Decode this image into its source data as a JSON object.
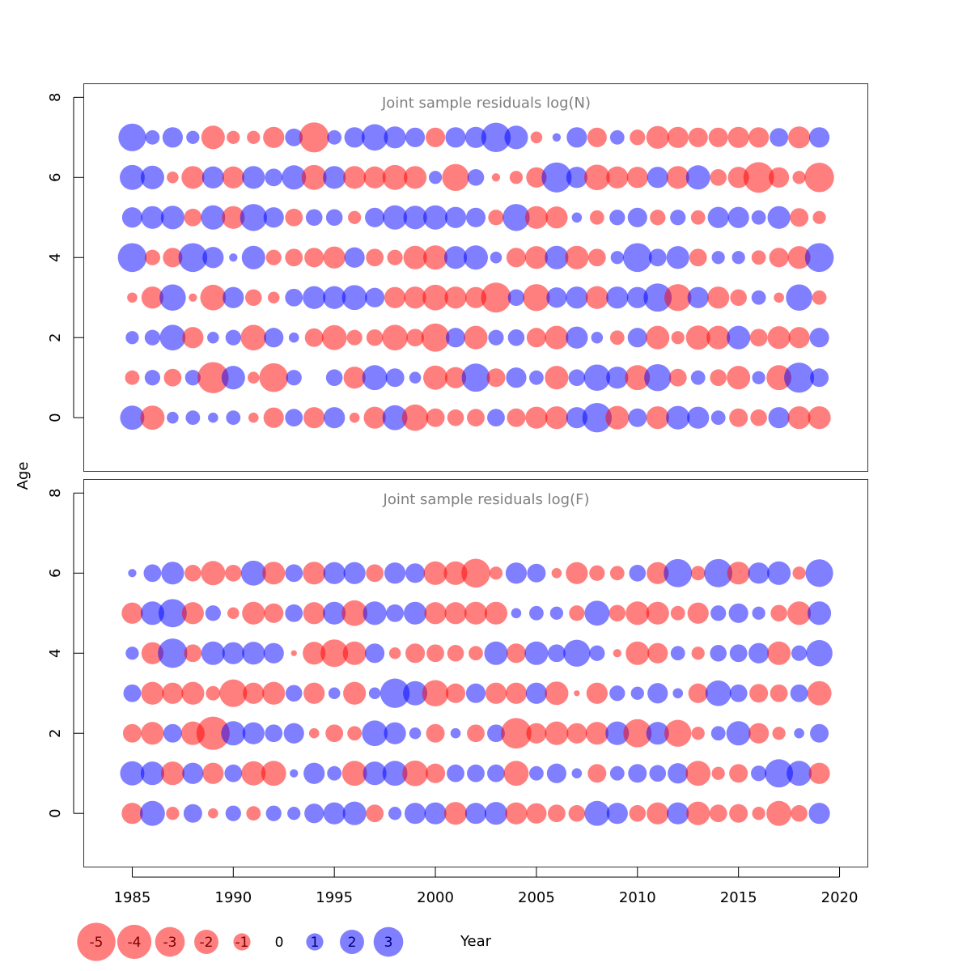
{
  "chart_data": [
    {
      "type": "scatter",
      "title": "Joint sample residuals log(N)",
      "xlabel": "Year",
      "ylabel": "Age",
      "xlim": [
        1982.6,
        2021.4
      ],
      "ylim": [
        -1.34,
        8.34
      ],
      "x_ticks": [
        1985,
        1990,
        1995,
        2000,
        2005,
        2010,
        2015,
        2020
      ],
      "y_ticks": [
        0,
        2,
        4,
        6,
        8
      ],
      "years": [
        1985,
        1986,
        1987,
        1988,
        1989,
        1990,
        1991,
        1992,
        1993,
        1994,
        1995,
        1996,
        1997,
        1998,
        1999,
        2000,
        2001,
        2002,
        2003,
        2004,
        2005,
        2006,
        2007,
        2008,
        2009,
        2010,
        2011,
        2012,
        2013,
        2014,
        2015,
        2016,
        2017,
        2018,
        2019
      ],
      "series": [
        {
          "age": 7,
          "residuals": [
            2.2,
            0.6,
            1.2,
            0.5,
            -1.6,
            -0.5,
            -0.5,
            -1.3,
            0.9,
            -2.6,
            0.6,
            1.2,
            2.0,
            1.4,
            1.1,
            -1.1,
            1.2,
            1.3,
            2.5,
            1.6,
            -0.4,
            0.2,
            1.2,
            -1.1,
            0.6,
            -0.7,
            -1.5,
            -1.3,
            -1.1,
            -1.1,
            -1.3,
            -1.2,
            1.0,
            -1.4,
            1.2
          ]
        },
        {
          "age": 6,
          "residuals": [
            1.8,
            1.6,
            -0.4,
            -1.5,
            1.4,
            -1.4,
            1.5,
            0.9,
            1.7,
            -1.8,
            1.5,
            -1.5,
            -1.4,
            -1.8,
            -1.5,
            0.5,
            -2.1,
            0.8,
            -0.2,
            -0.5,
            -1.2,
            2.6,
            1.3,
            -1.9,
            -1.4,
            -1.3,
            1.3,
            -1.5,
            1.7,
            -0.8,
            -1.3,
            -2.7,
            -1.2,
            -0.5,
            -2.5
          ]
        },
        {
          "age": 5,
          "residuals": [
            1.2,
            1.5,
            1.6,
            -0.9,
            1.7,
            -1.5,
            2.1,
            1.2,
            -0.9,
            0.8,
            0.8,
            -0.5,
            1.1,
            1.7,
            1.6,
            1.7,
            1.3,
            1.1,
            -0.7,
            2.1,
            -1.5,
            -1.4,
            0.3,
            -0.6,
            0.7,
            1.1,
            -0.7,
            0.7,
            -0.6,
            1.3,
            1.3,
            0.6,
            1.5,
            -1.0,
            -0.5
          ]
        },
        {
          "age": 4,
          "residuals": [
            2.4,
            -0.7,
            -1.1,
            2.4,
            1.3,
            0.2,
            1.6,
            -0.7,
            -0.9,
            -1.1,
            -1.4,
            1.2,
            -0.9,
            -0.7,
            -1.6,
            -1.7,
            1.5,
            1.7,
            0.4,
            -1.1,
            -1.5,
            1.6,
            -1.6,
            -0.9,
            0.5,
            2.4,
            0.9,
            1.5,
            -0.9,
            0.5,
            0.5,
            -0.6,
            -1.1,
            -1.5,
            2.4
          ]
        },
        {
          "age": 3,
          "residuals": [
            -0.3,
            -1.4,
            2.0,
            -0.2,
            -1.9,
            1.3,
            -0.8,
            -0.4,
            0.9,
            1.5,
            1.5,
            1.8,
            1.1,
            -1.3,
            -1.4,
            -1.9,
            -1.4,
            -1.3,
            -2.6,
            0.8,
            -2.1,
            1.2,
            1.4,
            -1.5,
            1.4,
            1.3,
            2.3,
            -2.1,
            1.3,
            -1.4,
            -0.8,
            0.6,
            -0.3,
            2.0,
            -0.6
          ]
        },
        {
          "age": 2,
          "residuals": [
            0.5,
            0.7,
            1.9,
            -1.3,
            0.4,
            0.7,
            -1.9,
            1.1,
            0.3,
            -1.0,
            -1.8,
            -0.7,
            -0.8,
            -1.9,
            -0.9,
            -2.3,
            1.1,
            -1.6,
            0.7,
            0.8,
            -1.1,
            -1.6,
            1.4,
            0.4,
            -0.6,
            1.1,
            -1.6,
            -0.5,
            -1.7,
            -1.6,
            1.6,
            -0.9,
            -1.5,
            -1.3,
            1.1
          ]
        },
        {
          "age": 1,
          "residuals": [
            -0.6,
            0.7,
            -0.9,
            0.7,
            -2.8,
            1.6,
            -0.4,
            -2.4,
            0.7,
            0.0,
            0.8,
            -1.4,
            1.8,
            1.0,
            0.4,
            -1.7,
            -1.3,
            2.3,
            -1.0,
            1.2,
            0.6,
            -1.6,
            0.8,
            2.0,
            1.4,
            -1.8,
            2.1,
            -0.9,
            0.6,
            -0.8,
            -1.6,
            0.5,
            -1.8,
            2.6,
            1.0
          ]
        },
        {
          "age": 0,
          "residuals": [
            1.7,
            -1.7,
            0.4,
            0.6,
            0.3,
            0.6,
            -0.3,
            -1.2,
            0.9,
            -1.3,
            1.3,
            -0.3,
            -1.4,
            1.8,
            -2.0,
            -1.0,
            -0.8,
            -0.9,
            0.9,
            -1.0,
            -1.4,
            -1.5,
            1.3,
            2.5,
            -1.6,
            1.0,
            -1.5,
            1.6,
            1.4,
            0.6,
            -1.0,
            -0.8,
            1.3,
            -1.5,
            -1.5
          ]
        }
      ]
    },
    {
      "type": "scatter",
      "title": "Joint sample residuals log(F)",
      "xlabel": "Year",
      "ylabel": "Age",
      "xlim": [
        1982.6,
        2021.4
      ],
      "ylim": [
        -1.34,
        8.34
      ],
      "x_ticks": [
        1985,
        1990,
        1995,
        2000,
        2005,
        2010,
        2015,
        2020
      ],
      "y_ticks": [
        0,
        2,
        4,
        6,
        8
      ],
      "years": [
        1985,
        1986,
        1987,
        1988,
        1989,
        1990,
        1991,
        1992,
        1993,
        1994,
        1995,
        1996,
        1997,
        1998,
        1999,
        2000,
        2001,
        2002,
        2003,
        2004,
        2005,
        2006,
        2007,
        2008,
        2009,
        2010,
        2011,
        2012,
        2013,
        2014,
        2015,
        2016,
        2017,
        2018,
        2019
      ],
      "series": [
        {
          "age": 6,
          "residuals": [
            0.2,
            0.9,
            1.5,
            -0.8,
            -1.7,
            -0.8,
            1.8,
            -1.5,
            0.9,
            -1.5,
            1.4,
            1.4,
            -0.9,
            1.3,
            1.1,
            -1.6,
            -1.6,
            -2.4,
            -0.5,
            1.3,
            1.0,
            -0.3,
            -1.4,
            -0.7,
            -0.6,
            0.8,
            -1.4,
            2.3,
            -0.6,
            2.3,
            -1.5,
            1.3,
            1.6,
            -0.5,
            2.2
          ]
        },
        {
          "age": 5,
          "residuals": [
            -1.3,
            1.6,
            2.3,
            -1.4,
            0.7,
            -0.4,
            -1.5,
            -1.1,
            0.9,
            -1.4,
            1.5,
            -1.9,
            1.6,
            0.9,
            1.5,
            -1.4,
            -1.4,
            -1.5,
            -1.5,
            0.3,
            0.6,
            0.5,
            -0.7,
            1.8,
            -0.8,
            -1.6,
            -1.5,
            -0.6,
            -1.3,
            0.7,
            1.1,
            0.5,
            -0.8,
            -1.6,
            1.6
          ]
        },
        {
          "age": 4,
          "residuals": [
            0.5,
            -1.4,
            2.5,
            -0.9,
            1.6,
            1.4,
            1.5,
            1.2,
            -0.1,
            -1.5,
            -2.2,
            -1.6,
            1.1,
            -0.4,
            -1.1,
            -0.9,
            -0.8,
            -0.6,
            1.6,
            -1.1,
            1.6,
            0.9,
            2.1,
            0.7,
            -0.2,
            -1.6,
            -1.2,
            0.6,
            -0.5,
            0.8,
            0.9,
            1.2,
            -1.6,
            0.7,
            2.0
          ]
        },
        {
          "age": 3,
          "residuals": [
            0.9,
            -1.5,
            -1.3,
            -1.5,
            -0.6,
            -2.2,
            -1.3,
            -1.5,
            0.8,
            -1.3,
            0.4,
            -1.5,
            0.4,
            2.5,
            1.7,
            -2.0,
            -1.1,
            1.1,
            -1.3,
            -1.3,
            1.3,
            -1.6,
            -0.1,
            -1.3,
            0.7,
            0.5,
            1.2,
            0.3,
            -1.1,
            1.9,
            0.9,
            -1.0,
            -0.9,
            0.9,
            -1.7
          ]
        },
        {
          "age": 2,
          "residuals": [
            -1.0,
            -1.5,
            1.0,
            -1.6,
            -3.2,
            1.7,
            1.4,
            0.9,
            1.2,
            -0.3,
            -0.9,
            -0.6,
            1.9,
            1.4,
            0.4,
            -1.0,
            0.3,
            -0.9,
            0.9,
            -2.7,
            -1.2,
            -1.6,
            -1.2,
            -1.5,
            1.6,
            -2.3,
            1.5,
            -2.1,
            -0.5,
            0.6,
            1.7,
            -1.2,
            -0.5,
            0.3,
            1.0
          ]
        },
        {
          "age": 1,
          "residuals": [
            1.7,
            1.6,
            -1.6,
            1.3,
            -1.3,
            0.9,
            -1.7,
            -1.8,
            0.2,
            1.3,
            0.6,
            -1.8,
            1.6,
            1.8,
            -1.9,
            -1.1,
            0.9,
            0.9,
            0.9,
            -1.8,
            0.6,
            1.1,
            0.3,
            -1.0,
            0.6,
            1.0,
            0.8,
            1.2,
            -1.8,
            -0.5,
            -1.0,
            0.7,
            2.3,
            1.8,
            -1.3
          ]
        },
        {
          "age": 0,
          "residuals": [
            -1.3,
            1.8,
            -0.5,
            1.0,
            -0.3,
            0.7,
            -0.6,
            0.7,
            0.5,
            1.1,
            1.4,
            1.6,
            -0.9,
            0.5,
            1.3,
            1.4,
            -1.5,
            1.3,
            1.5,
            -1.4,
            -1.2,
            -0.9,
            -0.8,
            1.8,
            1.3,
            -0.8,
            -1.4,
            1.4,
            -1.6,
            -0.9,
            -1.0,
            -0.5,
            -1.8,
            -0.8,
            1.3
          ]
        }
      ]
    }
  ],
  "legend": {
    "values": [
      -5,
      -4,
      -3,
      -2,
      -1,
      0,
      1,
      2,
      3
    ],
    "labels": [
      "-5",
      "-4",
      "-3",
      "-2",
      "-1",
      "0",
      "1",
      "2",
      "3"
    ]
  },
  "colors": {
    "negative_fill": "#ff0000",
    "positive_fill": "#0000ff",
    "fill_opacity": 0.5,
    "title_color": "#7f7f7f"
  }
}
